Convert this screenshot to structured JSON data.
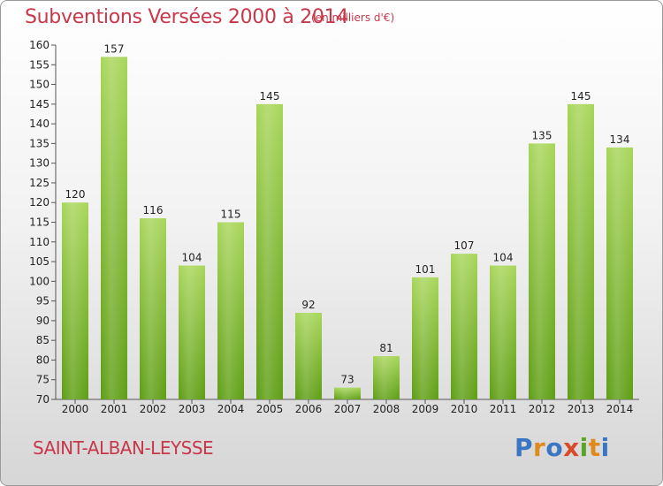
{
  "header": {
    "title": "Subventions Versées 2000 à 2014",
    "unit": "(en milliers d'€)"
  },
  "footer": {
    "place": "SAINT-ALBAN-LEYSSE",
    "logo": "Proxiti",
    "logo_colors": [
      "#3a76c4",
      "#e08a1e",
      "#3a76c4",
      "#d84a2a",
      "#5aa42a",
      "#e08a1e",
      "#3a76c4"
    ]
  },
  "colors": {
    "title": "#c8384a",
    "bar_light": "#a8d65a",
    "bar_dark": "#5e9e14"
  },
  "chart_data": {
    "type": "bar",
    "title": "Subventions Versées 2000 à 2014",
    "xlabel": "",
    "ylabel": "",
    "categories": [
      "2000",
      "2001",
      "2002",
      "2003",
      "2004",
      "2005",
      "2006",
      "2007",
      "2008",
      "2009",
      "2010",
      "2011",
      "2012",
      "2013",
      "2014"
    ],
    "values": [
      120,
      157,
      116,
      104,
      115,
      145,
      92,
      73,
      81,
      101,
      107,
      104,
      135,
      145,
      134
    ],
    "ylim": [
      70,
      160
    ],
    "yticks": [
      70,
      75,
      80,
      85,
      90,
      95,
      100,
      105,
      110,
      115,
      120,
      125,
      130,
      135,
      140,
      145,
      150,
      155,
      160
    ],
    "grid": false,
    "legend": "none"
  }
}
